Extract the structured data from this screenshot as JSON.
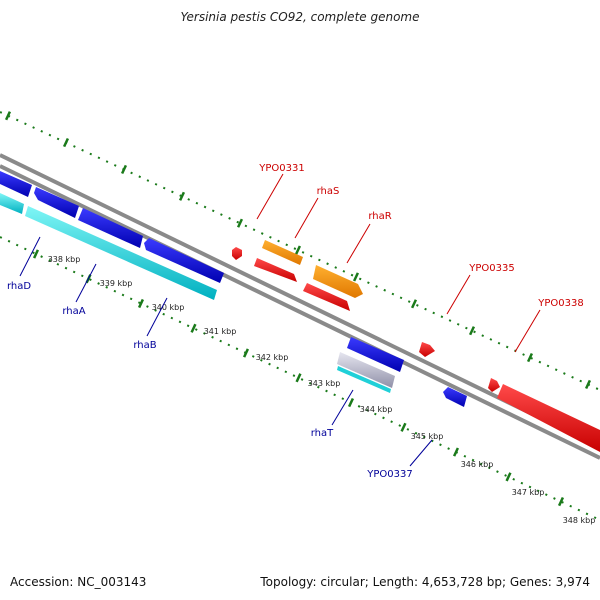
{
  "title": "Yersinia pestis CO92, complete genome",
  "accession": "Accession: NC_003143",
  "summary": "Topology: circular; Length: 4,653,728 bp; Genes: 3,974",
  "colors": {
    "forward_label": "#cc0000",
    "reverse_label": "#000099",
    "tick": "#1a7a1a",
    "backbone": "#888888"
  },
  "scale_labels": [
    "338 kbp",
    "339 kbp",
    "340 kbp",
    "341 kbp",
    "342 kbp",
    "343 kbp",
    "344 kbp",
    "345 kbp",
    "346 kbp",
    "347 kbp",
    "348 kbp"
  ],
  "forward_gene_labels": [
    "YPO0331",
    "rhaS",
    "rhaR",
    "YPO0335",
    "YPO0338"
  ],
  "reverse_gene_labels": [
    "rhaD",
    "rhaA",
    "rhaB",
    "rhaT",
    "YPO0337"
  ]
}
